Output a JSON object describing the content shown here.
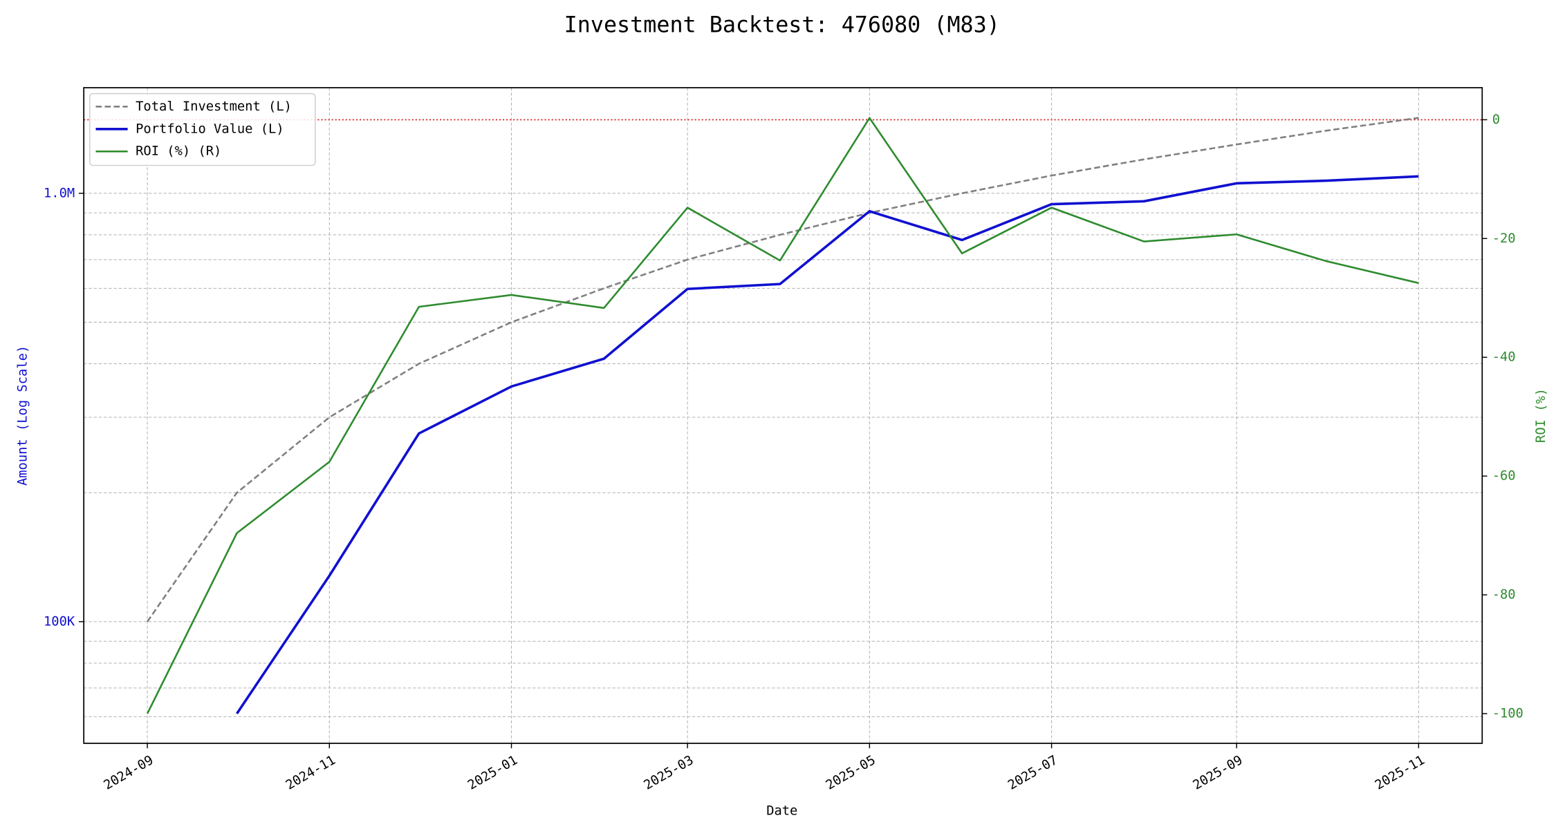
{
  "chart_data": {
    "type": "line",
    "title": "Investment Backtest: 476080 (M83)",
    "xlabel": "Date",
    "ylabel": "Amount (Log Scale)",
    "y2label": "ROI (%)",
    "x": [
      "2024-09",
      "2024-10",
      "2024-11",
      "2024-12",
      "2025-01",
      "2025-02",
      "2025-03",
      "2025-04",
      "2025-05",
      "2025-06",
      "2025-07",
      "2025-08",
      "2025-09",
      "2025-10",
      "2025-11"
    ],
    "xticks": [
      "2024-09",
      "2024-11",
      "2025-01",
      "2025-03",
      "2025-05",
      "2025-07",
      "2025-09",
      "2025-11"
    ],
    "series": [
      {
        "name": "Total Investment (L)",
        "color": "#808080",
        "dash": true,
        "axis": "y",
        "values": [
          100000,
          200000,
          300000,
          400000,
          500000,
          600000,
          700000,
          800000,
          900000,
          1000000,
          1100000,
          1200000,
          1300000,
          1400000,
          1500000
        ]
      },
      {
        "name": "Portfolio Value (L)",
        "color": "#1010d0",
        "dash": false,
        "axis": "y",
        "values": [
          null,
          61000,
          128000,
          275000,
          354000,
          411000,
          598000,
          614000,
          908000,
          778000,
          943000,
          958000,
          1055000,
          1070000,
          1095000
        ]
      },
      {
        "name": "ROI (%) (R)",
        "color": "#2e8b2e",
        "dash": false,
        "axis": "y2",
        "values": [
          -100,
          -69.6,
          -57.6,
          -31.5,
          -29.5,
          -31.7,
          -14.8,
          -23.7,
          0.3,
          -22.5,
          -14.8,
          -20.5,
          -19.3,
          -23.8,
          -27.5
        ]
      }
    ],
    "yscale": "log",
    "ylim": [
      52000,
      1764000
    ],
    "yticks": [
      {
        "value": 100000,
        "label": "100K"
      },
      {
        "value": 1000000,
        "label": "1.0M"
      }
    ],
    "yminorticks": [
      60000,
      70000,
      80000,
      90000,
      200000,
      300000,
      400000,
      500000,
      600000,
      700000,
      800000,
      900000
    ],
    "y2lim": [
      -105,
      5.4
    ],
    "y2ticks": [
      -100,
      -80,
      -60,
      -40,
      -20,
      0
    ],
    "y2refline": 0,
    "y2refline_color": "#d62728",
    "ycolor": "#1010d0",
    "y2color": "#2e8b2e",
    "grid": true,
    "legend": "upper left"
  }
}
